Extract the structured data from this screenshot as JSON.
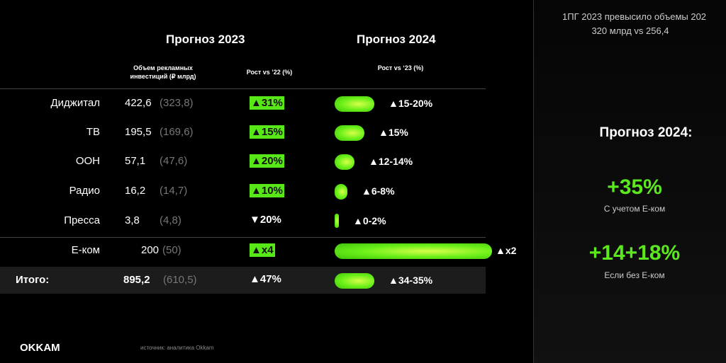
{
  "header": {
    "title_2023": "Прогноз 2023",
    "title_2024": "Прогноз 2024",
    "col_volume": "Объем рекламных инвестиций (₽ млрд)",
    "col_growth_2023": "Рост  vs ’22 (%)",
    "col_growth_2024": "Рост  vs ‘23 (%)"
  },
  "table": {
    "rows": [
      [
        "Диджитал",
        "422,6",
        "(323,8)",
        "▲31%",
        "▲15-20%"
      ],
      [
        "ТВ",
        "195,5",
        "(169,6)",
        "▲15%",
        "▲15%"
      ],
      [
        "ООН",
        "57,1",
        "(47,6)",
        "▲20%",
        "▲12-14%"
      ],
      [
        "Радио",
        "16,2",
        "(14,7)",
        "▲10%",
        "▲6-8%"
      ],
      [
        "Пресса",
        "3,8",
        "(4,8)",
        "▼20%",
        "▲0-2%"
      ],
      [
        "Е-ком",
        "200",
        "(50)",
        "▲x4",
        "▲x2"
      ],
      [
        "Итого:",
        "895,2",
        "(610,5)",
        "▲47%",
        "▲34-35%"
      ]
    ]
  },
  "side": {
    "note_line1": "1ПГ 2023 превысило объемы 202",
    "note_line2": "320 млрд vs 256,4",
    "title": "Прогноз 2024:",
    "value1": "+35%",
    "caption1": "С учетом Е-ком",
    "value2": "+14+18%",
    "caption2": "Если без Е-ком"
  },
  "footer": {
    "logo": "OKKAM",
    "source": "источник: аналитика Okkam"
  }
}
